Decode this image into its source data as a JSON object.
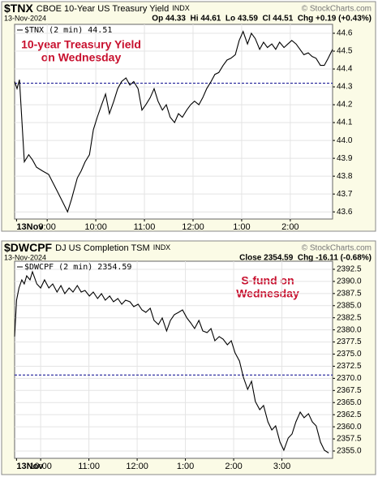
{
  "chart_data": [
    {
      "type": "line",
      "symbol": "$TNX",
      "description": "CBOE 10-Year US Treasury Yield",
      "exchange": "INDX",
      "date": "13-Nov-2024",
      "quote": "Op 44.33  Hi 44.61  Lo 43.59  Cl 44.51  Chg +0.19 (+0.43%)",
      "watermark": "© StockCharts.com",
      "annotation": [
        "10-year Treasury Yield",
        "on Wednesday"
      ],
      "reference_line": 44.32,
      "x": [
        8.33,
        8.38,
        8.43,
        8.53,
        8.62,
        8.7,
        8.78,
        8.9,
        9.03,
        9.2,
        9.33,
        9.42,
        9.5,
        9.62,
        9.7,
        9.78,
        9.87,
        9.95,
        10.03,
        10.12,
        10.2,
        10.28,
        10.37,
        10.45,
        10.53,
        10.62,
        10.7,
        10.78,
        10.87,
        10.95,
        11.03,
        11.12,
        11.2,
        11.28,
        11.37,
        11.45,
        11.53,
        11.62,
        11.7,
        11.78,
        11.87,
        11.95,
        12.03,
        12.12,
        12.2,
        12.28,
        12.37,
        12.45,
        12.53,
        12.62,
        12.7,
        12.78,
        12.87,
        12.95,
        13.03,
        13.12,
        13.2,
        13.28,
        13.37,
        13.45,
        13.53,
        13.62,
        13.7,
        13.78,
        13.87,
        13.95,
        14.03,
        14.12,
        14.2,
        14.28,
        14.37,
        14.45,
        14.53,
        14.62,
        14.7,
        14.78,
        14.87
      ],
      "series": [
        {
          "name": "$TNX (2 min) 44.51",
          "color": "#000000",
          "values": [
            44.33,
            44.29,
            44.34,
            43.88,
            43.92,
            43.89,
            43.85,
            43.83,
            43.81,
            43.72,
            43.65,
            43.6,
            43.67,
            43.79,
            43.83,
            43.88,
            43.92,
            44.06,
            44.13,
            44.2,
            44.26,
            44.15,
            44.22,
            44.29,
            44.33,
            44.35,
            44.31,
            44.33,
            44.29,
            44.17,
            44.2,
            44.24,
            44.29,
            44.22,
            44.17,
            44.2,
            44.13,
            44.1,
            44.15,
            44.13,
            44.17,
            44.2,
            44.22,
            44.2,
            44.24,
            44.29,
            44.33,
            44.37,
            44.38,
            44.42,
            44.45,
            44.46,
            44.48,
            44.56,
            44.61,
            44.54,
            44.6,
            44.57,
            44.51,
            44.55,
            44.52,
            44.54,
            44.51,
            44.55,
            44.52,
            44.54,
            44.56,
            44.54,
            44.51,
            44.48,
            44.49,
            44.47,
            44.46,
            44.42,
            44.42,
            44.46,
            44.51
          ]
        }
      ],
      "xlim": [
        8.33,
        14.87
      ],
      "xticks": [
        {
          "value": 8.37,
          "label": "13Nov"
        },
        {
          "value": 9,
          "label": "9:00"
        },
        {
          "value": 10,
          "label": "10:00"
        },
        {
          "value": 11,
          "label": "11:00"
        },
        {
          "value": 12,
          "label": "12:00"
        },
        {
          "value": 13,
          "label": "1:00"
        },
        {
          "value": 14,
          "label": "2:00"
        }
      ],
      "ylim": [
        43.56,
        44.65
      ],
      "yticks": [
        43.6,
        43.7,
        43.8,
        43.9,
        {
          "value": 44,
          "label": "44.0"
        },
        44.1,
        44.2,
        44.3,
        44.4,
        44.5,
        44.6
      ],
      "grid": true
    },
    {
      "type": "line",
      "symbol": "$DWCPF",
      "description": "DJ US Completion TSM",
      "exchange": "INDX",
      "date": "13-Nov-2024",
      "quote": "Close 2354.59  Chg -16.11 (-0.68%)",
      "watermark": "© StockCharts.com",
      "annotation": [
        "S-fund on",
        "Wednesday"
      ],
      "reference_line": 2370.7,
      "x": [
        9.46,
        9.5,
        9.55,
        9.61,
        9.66,
        9.71,
        9.78,
        9.83,
        9.92,
        10.0,
        10.08,
        10.17,
        10.25,
        10.34,
        10.42,
        10.5,
        10.59,
        10.67,
        10.76,
        10.84,
        10.92,
        11.01,
        11.09,
        11.18,
        11.26,
        11.34,
        11.43,
        11.51,
        11.6,
        11.68,
        11.76,
        11.85,
        11.93,
        12.02,
        12.1,
        12.18,
        12.27,
        12.35,
        12.44,
        12.52,
        12.61,
        12.69,
        12.77,
        12.86,
        12.94,
        13.03,
        13.11,
        13.19,
        13.28,
        13.36,
        13.45,
        13.53,
        13.61,
        13.7,
        13.78,
        13.87,
        13.95,
        14.03,
        14.12,
        14.2,
        14.29,
        14.37,
        14.45,
        14.54,
        14.62,
        14.71,
        14.79,
        14.87,
        14.96,
        15.04,
        15.13,
        15.21,
        15.29,
        15.38,
        15.46,
        15.55,
        15.63,
        15.71,
        15.8,
        15.88,
        15.97
      ],
      "series": [
        {
          "name": "$DWCPF (2 min) 2354.59",
          "color": "#000000",
          "values": [
            2378.61,
            2386.14,
            2388.65,
            2390.32,
            2389.49,
            2391.16,
            2390.32,
            2392.0,
            2389.49,
            2388.65,
            2390.32,
            2388.65,
            2389.49,
            2387.81,
            2389.15,
            2387.48,
            2388.65,
            2387.81,
            2389.15,
            2387.81,
            2388.15,
            2386.98,
            2387.81,
            2386.47,
            2387.48,
            2386.14,
            2386.98,
            2385.8,
            2386.47,
            2385.3,
            2386.14,
            2385.8,
            2384.8,
            2385.3,
            2384.13,
            2383.63,
            2384.46,
            2381.95,
            2381.12,
            2382.46,
            2379.78,
            2381.95,
            2383.13,
            2383.63,
            2384.13,
            2382.46,
            2381.45,
            2380.28,
            2381.95,
            2379.78,
            2379.44,
            2380.28,
            2377.77,
            2378.61,
            2378.1,
            2376.93,
            2377.77,
            2375.26,
            2373.58,
            2370.24,
            2367.72,
            2369.4,
            2365.21,
            2363.54,
            2364.38,
            2361.03,
            2359.35,
            2360.19,
            2356.84,
            2355.17,
            2357.68,
            2358.52,
            2361.03,
            2363.04,
            2361.87,
            2362.7,
            2361.03,
            2360.19,
            2356.84,
            2355.17,
            2354.59
          ]
        }
      ],
      "xlim": [
        9.46,
        16.05
      ],
      "xticks": [
        {
          "value": 9.5,
          "label": "13Nov"
        },
        {
          "value": 10,
          "label": "10:00"
        },
        {
          "value": 11,
          "label": "11:00"
        },
        {
          "value": 12,
          "label": "12:00"
        },
        {
          "value": 13,
          "label": "1:00"
        },
        {
          "value": 14,
          "label": "2:00"
        },
        {
          "value": 15,
          "label": "3:00"
        }
      ],
      "ylim": [
        2353.49,
        2394.17
      ],
      "yticks": [
        {
          "value": 2355,
          "label": "2355.0"
        },
        2357.5,
        {
          "value": 2360,
          "label": "2360.0"
        },
        2362.5,
        {
          "value": 2365,
          "label": "2365.0"
        },
        2367.5,
        {
          "value": 2370,
          "label": "2370.0"
        },
        2372.5,
        {
          "value": 2375,
          "label": "2375.0"
        },
        2377.5,
        {
          "value": 2380,
          "label": "2380.0"
        },
        2382.5,
        {
          "value": 2385,
          "label": "2385.0"
        },
        2387.5,
        {
          "value": 2390,
          "label": "2390.0"
        },
        2392.5
      ],
      "grid": true
    }
  ]
}
